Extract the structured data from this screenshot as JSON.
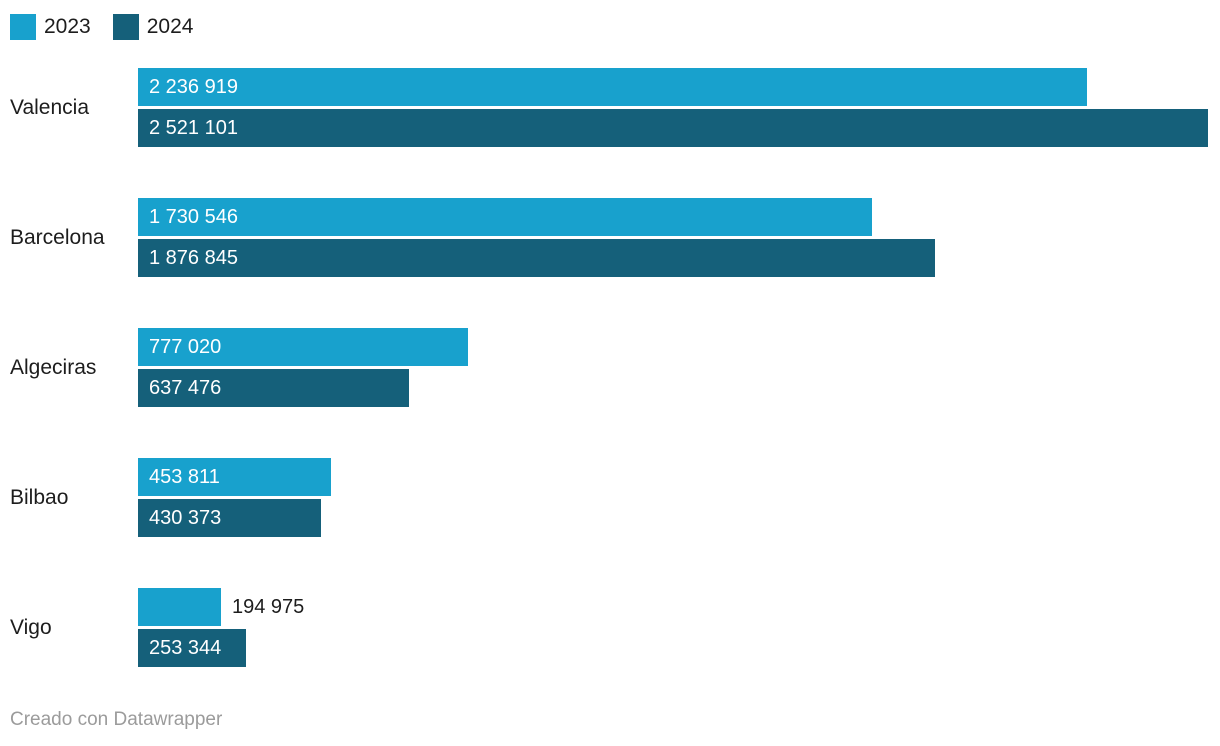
{
  "chart_data": {
    "type": "bar",
    "orientation": "horizontal",
    "title": "",
    "xlabel": "",
    "ylabel": "",
    "grid": false,
    "legend_position": "top-left",
    "xlim": [
      0,
      2521101
    ],
    "categories": [
      "Valencia",
      "Barcelona",
      "Algeciras",
      "Bilbao",
      "Vigo"
    ],
    "series": [
      {
        "name": "2023",
        "color": "#18a1cd",
        "values": [
          2236919,
          1730546,
          777020,
          453811,
          194975
        ],
        "labels": [
          "2 236 919",
          "1 730 546",
          "777 020",
          "453 811",
          "194 975"
        ]
      },
      {
        "name": "2024",
        "color": "#15607a",
        "values": [
          2521101,
          1876845,
          637476,
          430373,
          253344
        ],
        "labels": [
          "2 521 101",
          "1 876 845",
          "637 476",
          "430 373",
          "253 344"
        ]
      }
    ]
  },
  "footer": {
    "text": "Creado con Datawrapper"
  },
  "colors": {
    "background": "#ffffff",
    "category_text": "#1d1d1d",
    "value_text_inside": "#ffffff",
    "value_text_outside": "#1d1d1d",
    "footer_text": "#9b9b9b"
  }
}
